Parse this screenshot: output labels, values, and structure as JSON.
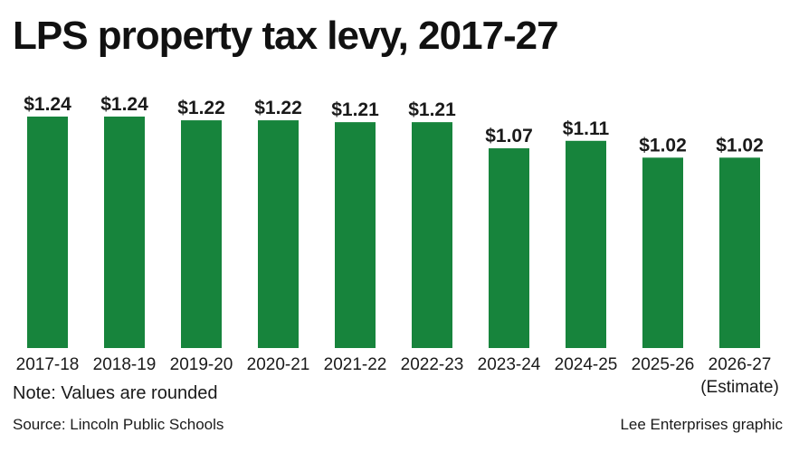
{
  "title": "LPS property tax levy, 2017-27",
  "note": "Note: Values are rounded",
  "source": "Source: Lincoln Public Schools",
  "credit": "Lee Enterprises graphic",
  "colors": {
    "bar": "#17843c"
  },
  "chart_data": {
    "type": "bar",
    "title": "LPS property tax levy, 2017-27",
    "xlabel": "",
    "ylabel": "",
    "categories": [
      "2017-18",
      "2018-19",
      "2019-20",
      "2020-21",
      "2021-22",
      "2022-23",
      "2023-24",
      "2024-25",
      "2025-26",
      "2026-27"
    ],
    "category_sublabels": [
      "",
      "",
      "",
      "",
      "",
      "",
      "",
      "",
      "",
      "(Estimate)"
    ],
    "values": [
      1.24,
      1.24,
      1.22,
      1.22,
      1.21,
      1.21,
      1.07,
      1.11,
      1.02,
      1.02
    ],
    "value_labels": [
      "$1.24",
      "$1.24",
      "$1.22",
      "$1.22",
      "$1.21",
      "$1.21",
      "$1.07",
      "$1.11",
      "$1.02",
      "$1.02"
    ],
    "ylim": [
      0,
      1.3
    ],
    "grid": false,
    "legend": "none"
  }
}
